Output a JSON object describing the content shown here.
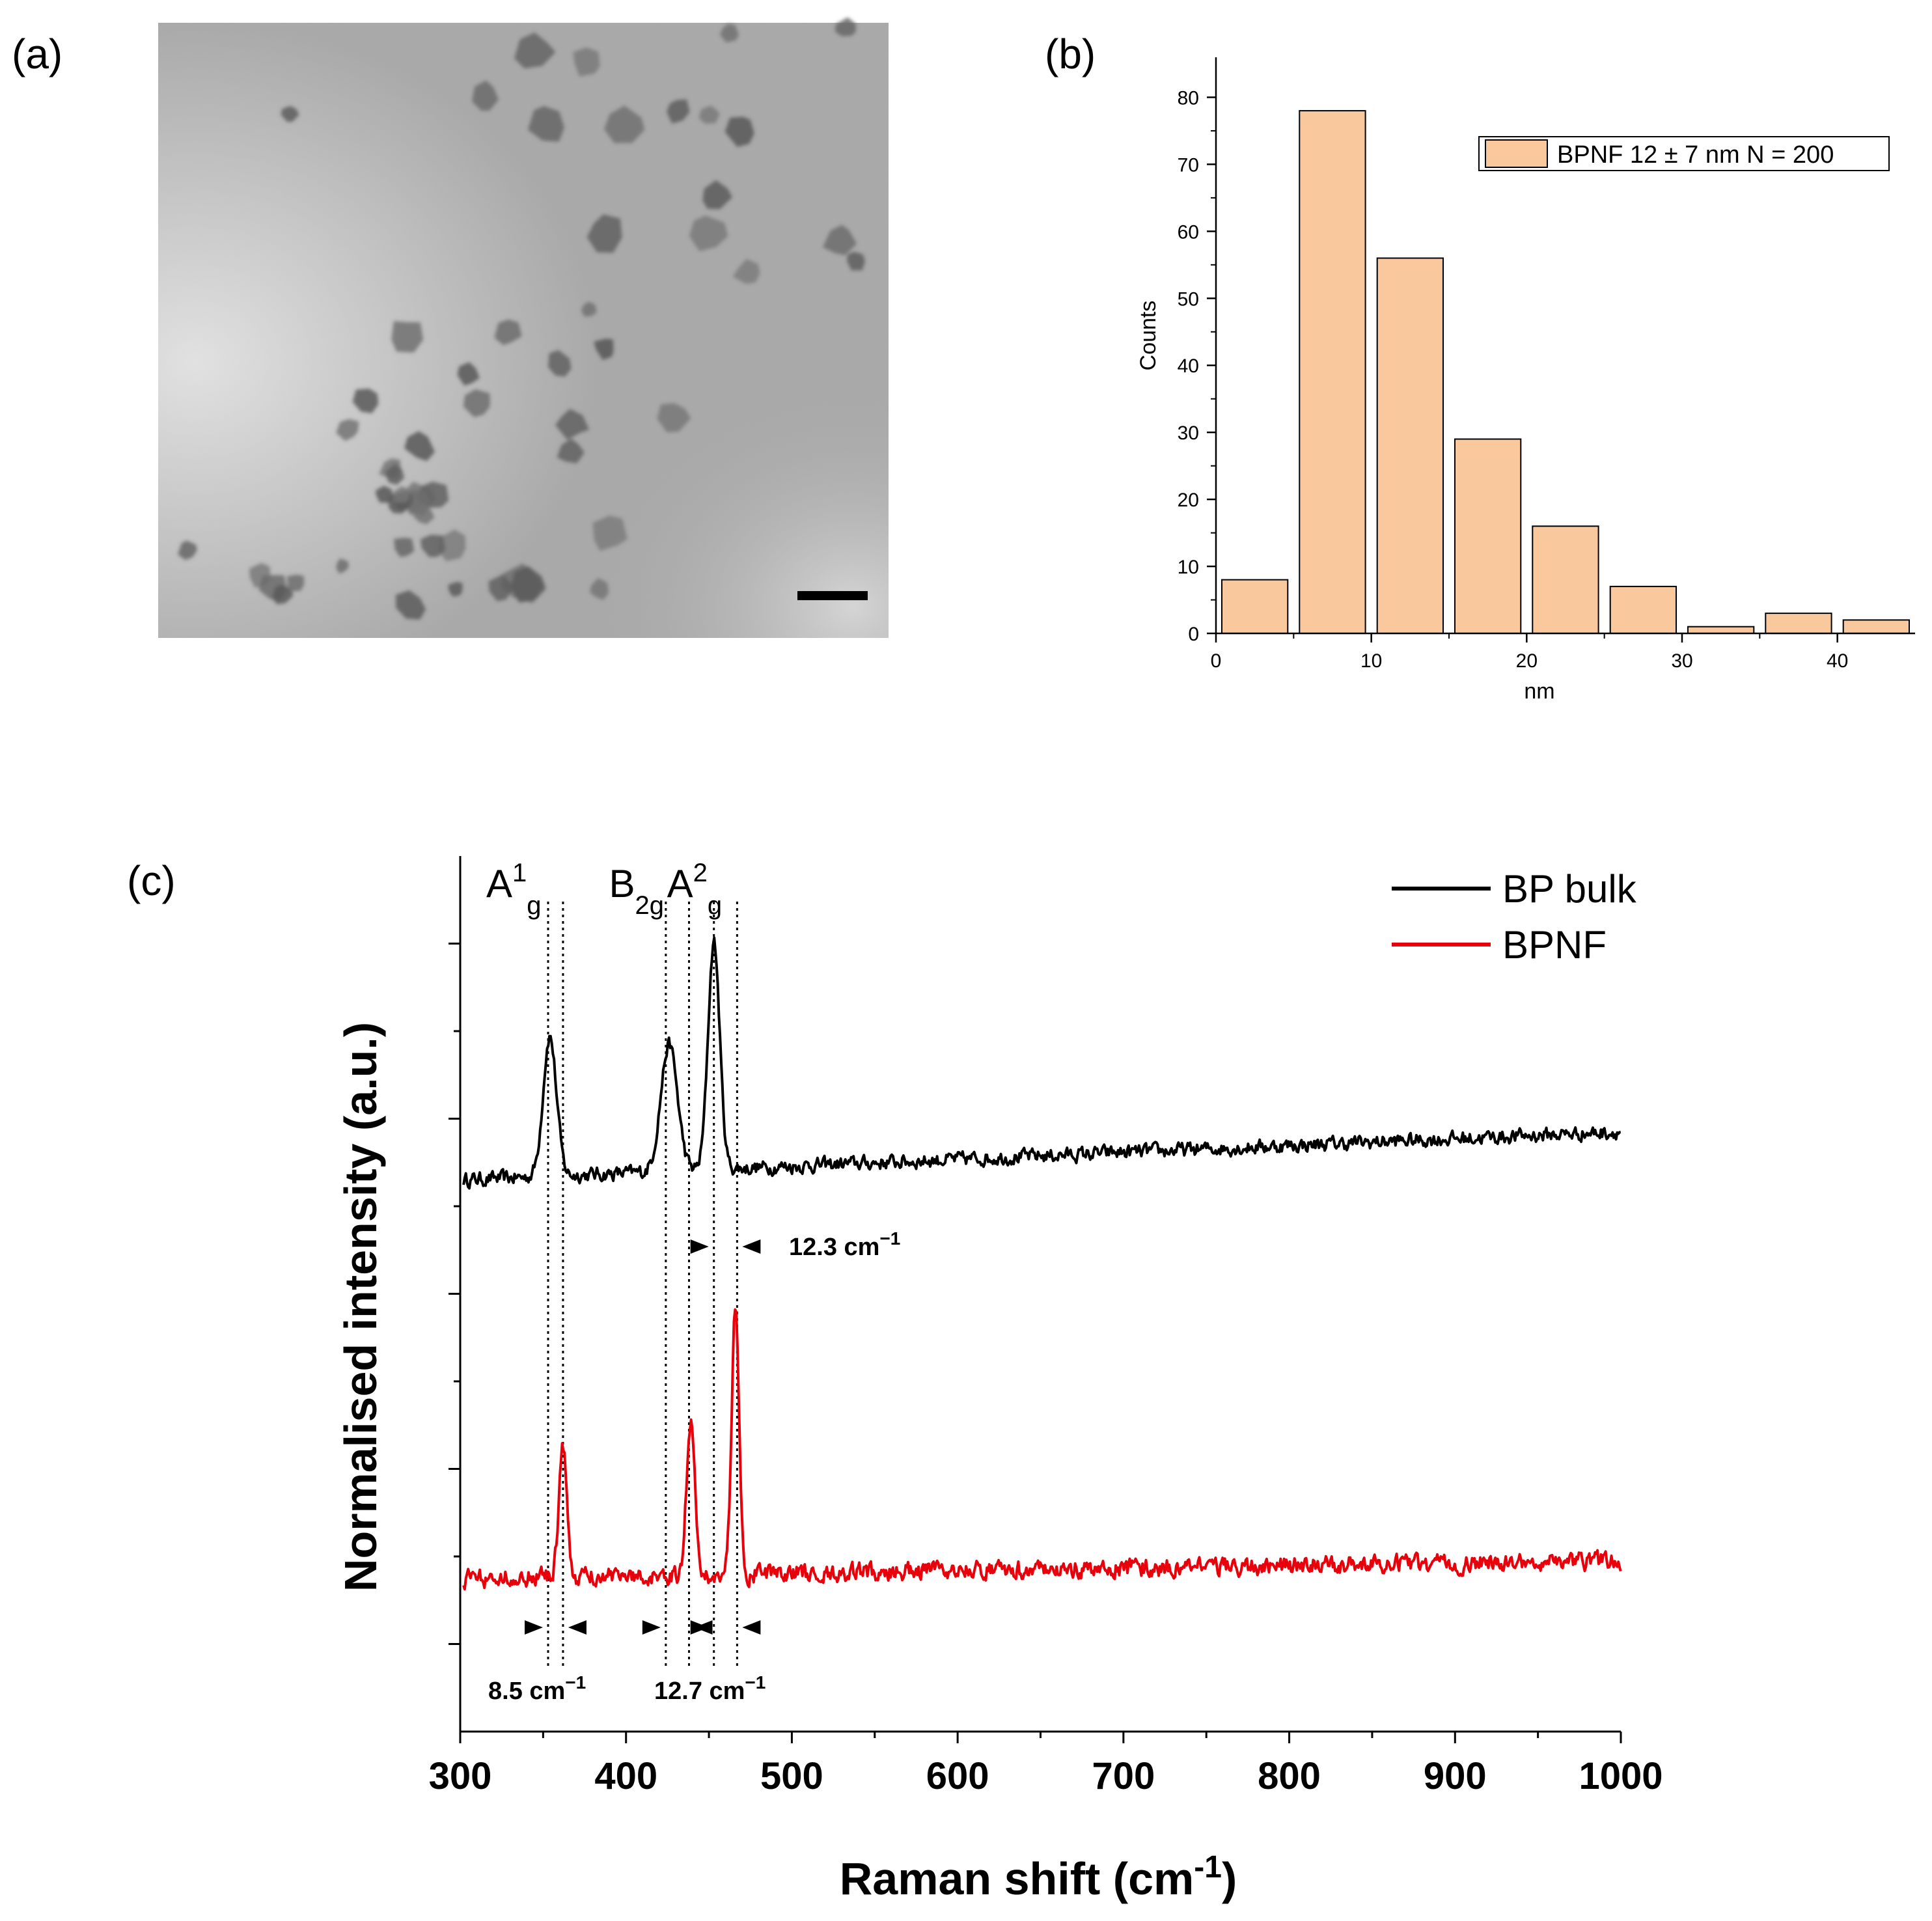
{
  "panels": {
    "a": {
      "label": "(a)",
      "image": "TEM micrograph of BPNF nanoflakes with scale bar"
    },
    "b": {
      "label": "(b)"
    },
    "c": {
      "label": "(c)"
    }
  },
  "chart_data": [
    {
      "type": "bar",
      "panel": "(b)",
      "title": "",
      "xlabel": "nm",
      "ylabel": "Counts",
      "bins": [
        {
          "x_start": 0,
          "x_end": 5,
          "count": 8
        },
        {
          "x_start": 5,
          "x_end": 10,
          "count": 78
        },
        {
          "x_start": 10,
          "x_end": 15,
          "count": 56
        },
        {
          "x_start": 15,
          "x_end": 20,
          "count": 29
        },
        {
          "x_start": 20,
          "x_end": 25,
          "count": 16
        },
        {
          "x_start": 25,
          "x_end": 30,
          "count": 7
        },
        {
          "x_start": 30,
          "x_end": 35,
          "count": 1
        },
        {
          "x_start": 35,
          "x_end": 40,
          "count": 3
        },
        {
          "x_start": 40,
          "x_end": 45,
          "count": 2
        }
      ],
      "xlim": [
        0,
        45
      ],
      "ylim": [
        0,
        85
      ],
      "xticks": [
        0,
        10,
        20,
        30,
        40
      ],
      "yticks": [
        0,
        10,
        20,
        30,
        40,
        50,
        60,
        70,
        80
      ],
      "legend": "BPNF 12 ± 7 nm N = 200",
      "bar_color": "#f9c99d",
      "legend_position": "top-right"
    },
    {
      "type": "line",
      "panel": "(c)",
      "xlabel": "Raman shift (cm",
      "xlabel_sup": "-1",
      "xlabel_close": ")",
      "ylabel": "Normalised intensity (a.u.)",
      "xlim": [
        300,
        1000
      ],
      "ylim": [
        0,
        10
      ],
      "xticks": [
        300,
        400,
        500,
        600,
        700,
        800,
        900,
        1000
      ],
      "series": [
        {
          "name": "BP bulk",
          "color": "#000000",
          "baseline": 6.3,
          "peaks": [
            {
              "center": 354,
              "height": 1.6,
              "width": 4
            },
            {
              "center": 426,
              "height": 1.45,
              "width": 5
            },
            {
              "center": 453,
              "height": 2.6,
              "width": 3.5
            }
          ],
          "drift_end": 0.55,
          "noise": 0.07
        },
        {
          "name": "BPNF",
          "color": "#e8000b",
          "baseline": 1.75,
          "peaks": [
            {
              "center": 362,
              "height": 1.45,
              "width": 2.5
            },
            {
              "center": 439,
              "height": 1.75,
              "width": 2.5
            },
            {
              "center": 466,
              "height": 3.0,
              "width": 2.3
            }
          ],
          "drift_end": 0.2,
          "noise": 0.09
        }
      ],
      "peak_labels": [
        {
          "base": "A",
          "sup": "1",
          "sub": "g",
          "x": 353
        },
        {
          "base": "B",
          "sup": "",
          "sub": "2g",
          "x": 427
        },
        {
          "base": "A",
          "sup": "2",
          "sub": "g",
          "x": 462
        }
      ],
      "dotted_lines_x": [
        353,
        362,
        424,
        438,
        453,
        467
      ],
      "annotations": [
        {
          "text": "12.3 cm",
          "sup": "−1",
          "pair": [
            453,
            467
          ],
          "row": "upper"
        },
        {
          "text": "8.5 cm",
          "sup": "−1",
          "pair": [
            353,
            362
          ],
          "row": "lower"
        },
        {
          "text": "12.7 cm",
          "sup": "−1",
          "pair": [
            424,
            438
          ],
          "second_pair": [
            453,
            467
          ],
          "row": "lower"
        }
      ],
      "legend_position": "top-right"
    }
  ]
}
